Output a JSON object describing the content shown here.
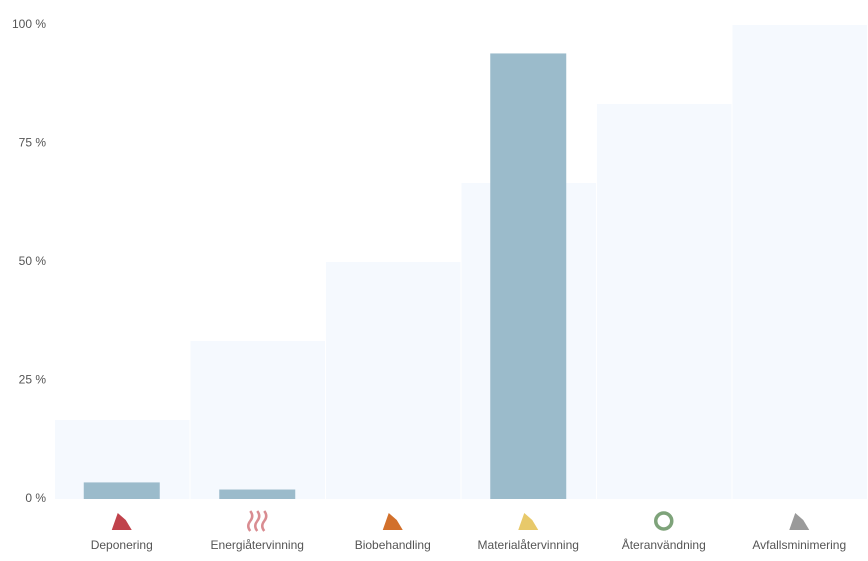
{
  "chart_data": {
    "type": "bar",
    "categories": [
      "Deponering",
      "Energiåtervinning",
      "Biobehandling",
      "Materialåtervinning",
      "Återanvändning",
      "Avfallsminimering"
    ],
    "values": [
      3.5,
      2,
      0,
      94,
      0,
      0
    ],
    "color": "#9bbbcb",
    "background_values": [
      16.67,
      33.33,
      50,
      66.67,
      83.33,
      100
    ],
    "background_color": "#f5f9fe",
    "ylim": [
      0,
      100
    ],
    "yticks": [
      {
        "value": 0,
        "label": "0 %"
      },
      {
        "value": 25,
        "label": "25 %"
      },
      {
        "value": 50,
        "label": "50 %"
      },
      {
        "value": 75,
        "label": "75 %"
      },
      {
        "value": 100,
        "label": "100 %"
      }
    ],
    "grid": false
  }
}
